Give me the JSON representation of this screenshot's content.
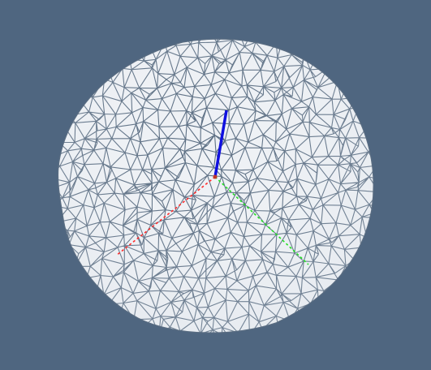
{
  "viewer": {
    "background_color": "#4f6680",
    "object": "triangulated-sphere-mesh",
    "mesh_fill_color": "#eef1f5",
    "mesh_edge_color": "#5a6d82"
  },
  "axes": {
    "x": {
      "name": "x-axis",
      "color": "#ff2a2a"
    },
    "y": {
      "name": "y-axis",
      "color": "#22e022"
    },
    "z": {
      "name": "z-axis",
      "color": "#1010e0"
    }
  }
}
